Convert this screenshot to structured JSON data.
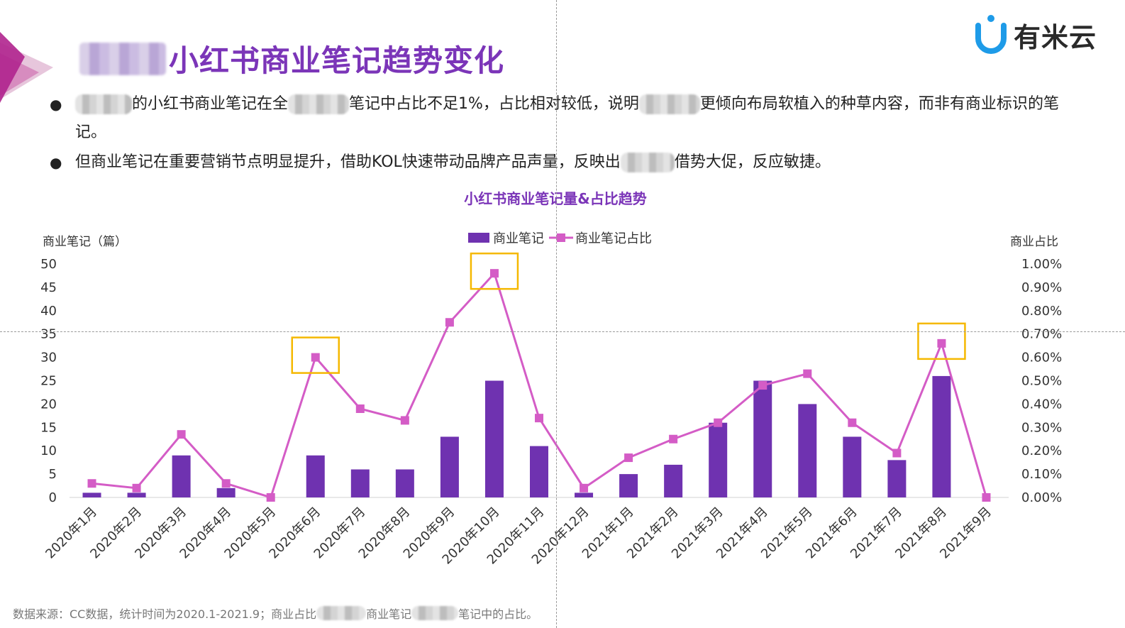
{
  "brand": {
    "name": "有米云",
    "accent": "#1e9be8"
  },
  "title": {
    "text": "小红书商业笔记趋势变化",
    "color": "#7b35b8"
  },
  "bullets": [
    {
      "parts": [
        "的小红书商业笔记在全",
        "笔记中占比不足1%，占比相对较低，说明",
        "更倾向布局软植入的种草内容，而非有商业标识",
        "的笔记。"
      ]
    },
    {
      "parts": [
        "但商业笔记在重要营销节点明显提升，借助KOL快速带动品牌产品声量，反映出",
        "借势大促，反应敏捷。"
      ]
    }
  ],
  "source": {
    "prefix": "数据来源：CC数据，统计时间为2020.1-2021.9；商业占比",
    "mid": "商业笔记",
    "suffix": "笔记中的占比。"
  },
  "chart_data": {
    "type": "bar+line",
    "title": "小红书商业笔记量&占比趋势",
    "categories": [
      "2020年1月",
      "2020年2月",
      "2020年3月",
      "2020年4月",
      "2020年5月",
      "2020年6月",
      "2020年7月",
      "2020年8月",
      "2020年9月",
      "2020年10月",
      "2020年11月",
      "2020年12月",
      "2021年1月",
      "2021年2月",
      "2021年3月",
      "2021年4月",
      "2021年5月",
      "2021年6月",
      "2021年7月",
      "2021年8月",
      "2021年9月"
    ],
    "series": [
      {
        "name": "商业笔记",
        "type": "bar",
        "axis": "left",
        "color": "#6f32b0",
        "values": [
          1,
          1,
          9,
          2,
          0,
          9,
          6,
          6,
          13,
          25,
          11,
          1,
          5,
          7,
          16,
          25,
          20,
          13,
          8,
          26,
          0
        ]
      },
      {
        "name": "商业笔记占比",
        "type": "line",
        "axis": "right",
        "color": "#d45cc6",
        "values": [
          0.0006,
          0.0004,
          0.0027,
          0.0006,
          0.0,
          0.006,
          0.0038,
          0.0033,
          0.0075,
          0.0096,
          0.0034,
          0.0004,
          0.0017,
          0.0025,
          0.0032,
          0.0048,
          0.0053,
          0.0032,
          0.0019,
          0.0066,
          0.0
        ]
      }
    ],
    "ylabel_left": "商业笔记（篇）",
    "ylabel_right": "商业占比",
    "ylim_left": [
      0,
      50
    ],
    "yticks_left": [
      "0",
      "5",
      "10",
      "15",
      "20",
      "25",
      "30",
      "35",
      "40",
      "45",
      "50"
    ],
    "ylim_right": [
      0,
      0.01
    ],
    "yticks_right": [
      "0.00%",
      "0.10%",
      "0.20%",
      "0.30%",
      "0.40%",
      "0.50%",
      "0.60%",
      "0.70%",
      "0.80%",
      "0.90%",
      "1.00%"
    ],
    "legend_position": "top-center",
    "grid": false,
    "highlight_indices": [
      5,
      9,
      19
    ],
    "highlight_color": "#f5b800"
  }
}
